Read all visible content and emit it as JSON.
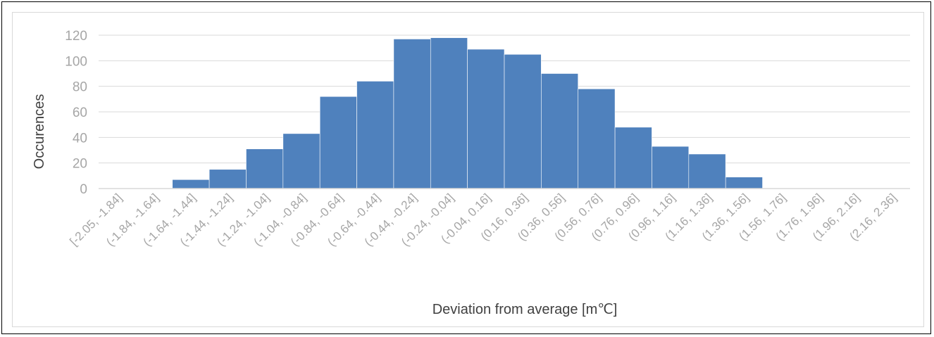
{
  "chart_data": {
    "type": "bar",
    "title": "",
    "xlabel": "Deviation from average [m℃]",
    "ylabel": "Occurences",
    "ylim": [
      0,
      120
    ],
    "yticks": [
      0,
      20,
      40,
      60,
      80,
      100,
      120
    ],
    "grid": true,
    "legend": "none",
    "bar_color": "#4f81bd",
    "categories": [
      "[-2.05, -1.84]",
      "(-1.84, -1.64]",
      "(-1.64, -1.44]",
      "(-1.44, -1.24]",
      "(-1.24, -1.04]",
      "(-1.04, -0.84]",
      "(-0.84, -0.64]",
      "(-0.64, -0.44]",
      "(-0.44, -0.24]",
      "(-0.24, -0.04]",
      "(-0.04, 0.16]",
      "(0.16, 0.36]",
      "(0.36, 0.56]",
      "(0.56, 0.76]",
      "(0.76, 0.96]",
      "(0.96, 1.16]",
      "(1.16, 1.36]",
      "(1.36, 1.56]",
      "(1.56, 1.76]",
      "(1.76, 1.96]",
      "(1.96, 2.16]",
      "(2.16, 2.36]"
    ],
    "values": [
      0,
      0,
      7,
      15,
      31,
      43,
      72,
      84,
      117,
      118,
      109,
      105,
      90,
      78,
      48,
      33,
      27,
      9,
      0,
      0,
      0,
      0
    ]
  }
}
